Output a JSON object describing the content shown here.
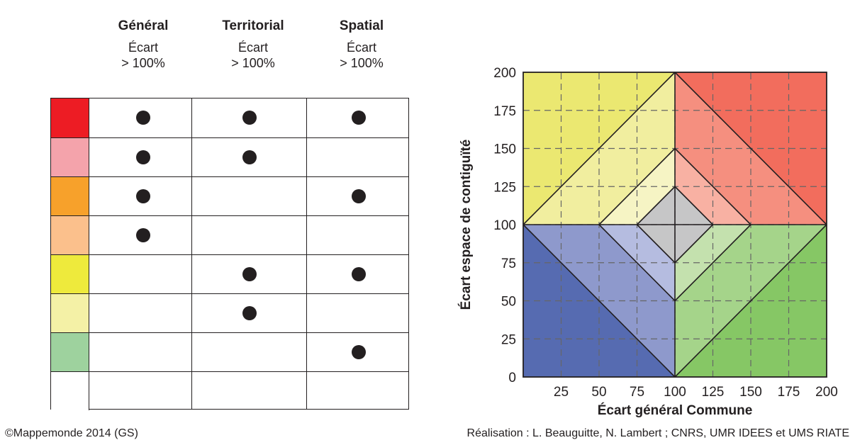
{
  "columns": [
    {
      "title": "Général",
      "subtitle_line1": "Écart",
      "subtitle_line2": "> 100%"
    },
    {
      "title": "Territorial",
      "subtitle_line1": "Écart",
      "subtitle_line2": "> 100%"
    },
    {
      "title": "Spatial",
      "subtitle_line1": "Écart",
      "subtitle_line2": "> 100%"
    }
  ],
  "legend_rows": [
    {
      "color": "#ed1c24",
      "general": true,
      "territorial": true,
      "spatial": true
    },
    {
      "color": "#f4a3ab",
      "general": true,
      "territorial": true,
      "spatial": false
    },
    {
      "color": "#f7a12b",
      "general": true,
      "territorial": false,
      "spatial": true
    },
    {
      "color": "#fbc08c",
      "general": true,
      "territorial": false,
      "spatial": false
    },
    {
      "color": "#eeea3c",
      "general": false,
      "territorial": true,
      "spatial": true
    },
    {
      "color": "#f4f1a6",
      "general": false,
      "territorial": true,
      "spatial": false
    },
    {
      "color": "#9ed29e",
      "general": false,
      "territorial": false,
      "spatial": true
    },
    {
      "color": "#ffffff",
      "general": false,
      "territorial": false,
      "spatial": false
    }
  ],
  "chart_data": {
    "type": "diagram",
    "xlabel": "Écart général Commune",
    "ylabel": "Écart espace de contiguïté",
    "xlim": [
      0,
      200
    ],
    "ylim": [
      0,
      200
    ],
    "x_ticks": [
      "25",
      "50",
      "75",
      "100",
      "125",
      "150",
      "175",
      "200"
    ],
    "y_ticks": [
      "0",
      "25",
      "50",
      "75",
      "100",
      "125",
      "150",
      "175",
      "200"
    ],
    "grid": "dashed",
    "zone_colors": {
      "yellow_outer": "#ebe871",
      "yellow_mid": "#f1ee9f",
      "yellow_inner": "#f6f4c4",
      "red_outer": "#f26d5d",
      "red_mid": "#f58f7f",
      "red_inner": "#f8b1a3",
      "blue_outer": "#566bb1",
      "blue_mid": "#8e99cc",
      "blue_inner": "#b5bce0",
      "green_outer": "#86c765",
      "green_mid": "#a5d48a",
      "green_inner": "#c4e1ae",
      "center": "#c6c6c7"
    }
  },
  "footer": {
    "left": "©Mappemonde 2014 (GS)",
    "right": "Réalisation : L. Beauguitte, N. Lambert ; CNRS, UMR IDEES et UMS RIATE"
  }
}
